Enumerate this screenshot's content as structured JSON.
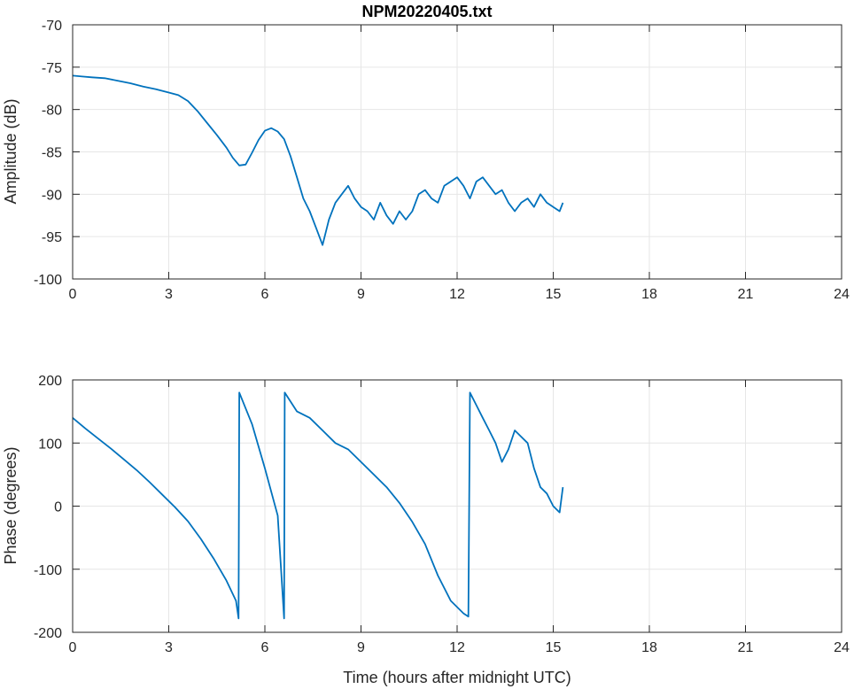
{
  "chart_data": [
    {
      "type": "line",
      "title": "NPM20220405.txt",
      "xlabel": "",
      "ylabel": "Amplitude (dB)",
      "xlim": [
        0,
        24
      ],
      "ylim": [
        -100,
        -70
      ],
      "xticks": [
        0,
        3,
        6,
        9,
        12,
        15,
        18,
        21,
        24
      ],
      "yticks": [
        -100,
        -95,
        -90,
        -85,
        -80,
        -75,
        -70
      ],
      "grid": true,
      "line_color": "#0072BD",
      "series": [
        {
          "x": [
            0,
            0.3,
            0.6,
            1.0,
            1.4,
            1.8,
            2.2,
            2.6,
            3.0,
            3.3,
            3.6,
            3.9,
            4.2,
            4.5,
            4.8,
            5.0,
            5.2,
            5.4,
            5.6,
            5.8,
            6.0,
            6.2,
            6.4,
            6.6,
            6.8,
            7.0,
            7.2,
            7.4,
            7.6,
            7.8,
            8.0,
            8.2,
            8.4,
            8.6,
            8.8,
            9.0,
            9.2,
            9.4,
            9.6,
            9.8,
            10.0,
            10.2,
            10.4,
            10.6,
            10.8,
            11.0,
            11.2,
            11.4,
            11.6,
            11.8,
            12.0,
            12.2,
            12.4,
            12.6,
            12.8,
            13.0,
            13.2,
            13.4,
            13.6,
            13.8,
            14.0,
            14.2,
            14.4,
            14.6,
            14.8,
            15.0,
            15.2,
            15.3
          ],
          "y": [
            -76.0,
            -76.1,
            -76.2,
            -76.3,
            -76.6,
            -76.9,
            -77.3,
            -77.6,
            -78.0,
            -78.3,
            -79.0,
            -80.2,
            -81.6,
            -83.0,
            -84.5,
            -85.7,
            -86.6,
            -86.5,
            -85.1,
            -83.6,
            -82.5,
            -82.2,
            -82.6,
            -83.5,
            -85.5,
            -88.0,
            -90.5,
            -92.0,
            -94.0,
            -96.0,
            -93.0,
            -91.0,
            -90.0,
            -89.0,
            -90.5,
            -91.5,
            -92.0,
            -93.0,
            -91.0,
            -92.5,
            -93.5,
            -92.0,
            -93.0,
            -92.0,
            -90.0,
            -89.5,
            -90.5,
            -91.0,
            -89.0,
            -88.5,
            -88.0,
            -89.0,
            -90.5,
            -88.5,
            -88.0,
            -89.0,
            -90.0,
            -89.5,
            -91.0,
            -92.0,
            -91.0,
            -90.5,
            -91.5,
            -90.0,
            -91.0,
            -91.5,
            -92.0,
            -91.0
          ]
        }
      ]
    },
    {
      "type": "line",
      "title": "",
      "xlabel": "Time (hours after midnight UTC)",
      "ylabel": "Phase (degrees)",
      "xlim": [
        0,
        24
      ],
      "ylim": [
        -200,
        200
      ],
      "xticks": [
        0,
        3,
        6,
        9,
        12,
        15,
        18,
        21,
        24
      ],
      "yticks": [
        -200,
        -100,
        0,
        100,
        200
      ],
      "grid": true,
      "line_color": "#0072BD",
      "series": [
        {
          "x": [
            0,
            0.4,
            0.8,
            1.2,
            1.6,
            2.0,
            2.4,
            2.8,
            3.2,
            3.6,
            4.0,
            4.4,
            4.8,
            5.1,
            5.18,
            5.2,
            5.6,
            6.0,
            6.4,
            6.6,
            6.62,
            7.0,
            7.4,
            7.8,
            8.2,
            8.6,
            9.0,
            9.4,
            9.8,
            10.2,
            10.6,
            11.0,
            11.4,
            11.8,
            12.2,
            12.35,
            12.4,
            12.6,
            12.8,
            13.0,
            13.2,
            13.4,
            13.6,
            13.8,
            14.0,
            14.2,
            14.4,
            14.6,
            14.8,
            15.0,
            15.2,
            15.3
          ],
          "y": [
            140,
            123,
            107,
            91,
            74,
            57,
            38,
            18,
            -2,
            -24,
            -52,
            -83,
            -118,
            -150,
            -178,
            180,
            130,
            60,
            -15,
            -178,
            180,
            150,
            140,
            120,
            100,
            90,
            70,
            50,
            30,
            5,
            -25,
            -60,
            -110,
            -150,
            -170,
            -175,
            180,
            160,
            140,
            120,
            100,
            70,
            90,
            120,
            110,
            100,
            60,
            30,
            20,
            0,
            -10,
            30
          ]
        }
      ]
    }
  ]
}
